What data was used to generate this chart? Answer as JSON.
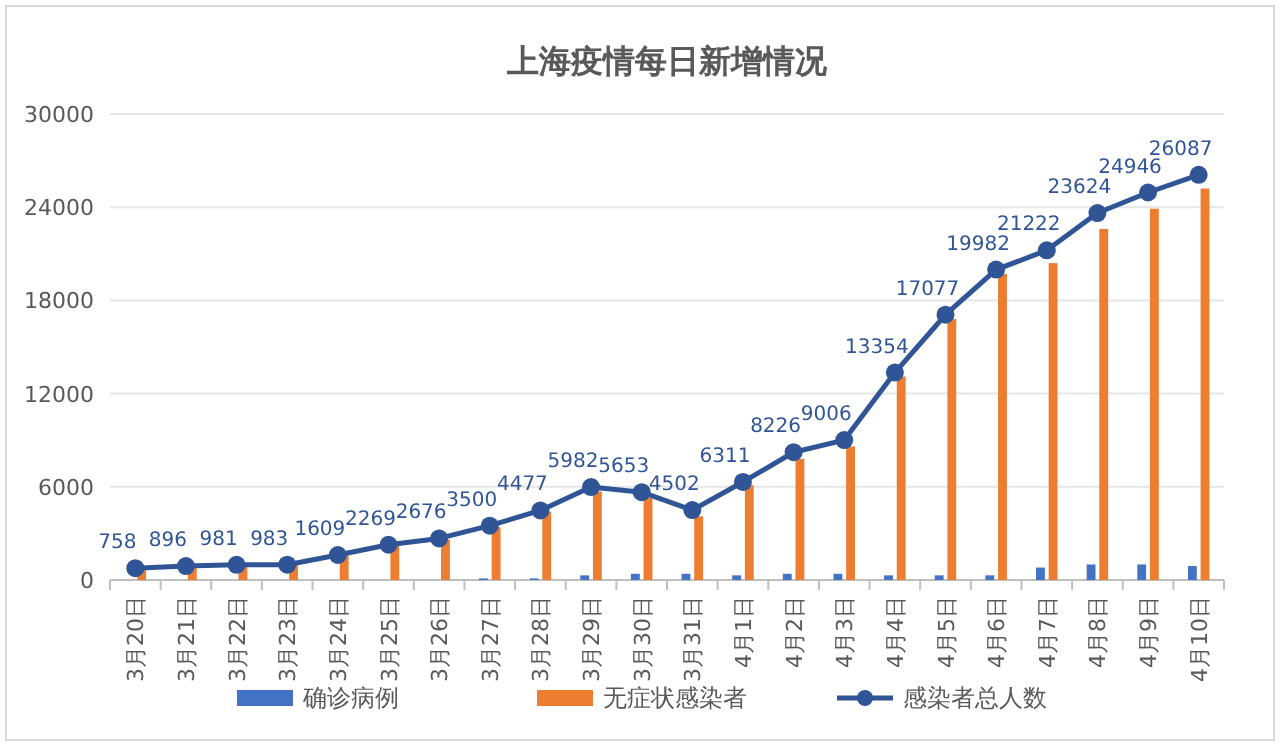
{
  "chart_data": {
    "type": "bar",
    "title": "上海疫情每日新增情况",
    "categories": [
      "3月20日",
      "3月21日",
      "3月22日",
      "3月23日",
      "3月24日",
      "3月25日",
      "3月26日",
      "3月27日",
      "3月28日",
      "3月29日",
      "3月30日",
      "3月31日",
      "4月1日",
      "4月2日",
      "4月3日",
      "4月4日",
      "4月5日",
      "4月6日",
      "4月7日",
      "4月8日",
      "4月9日",
      "4月10日"
    ],
    "series": [
      {
        "name": "确诊病例",
        "color": "#4472c4",
        "values": [
          0,
          0,
          0,
          0,
          0,
          0,
          0,
          100,
          100,
          300,
          400,
          400,
          300,
          400,
          400,
          300,
          300,
          300,
          800,
          1000,
          1000,
          900
        ]
      },
      {
        "name": "无症状感染者",
        "color": "#ed7d31",
        "values": [
          700,
          900,
          1000,
          1000,
          1600,
          2200,
          2600,
          3400,
          4400,
          5700,
          5300,
          4100,
          6100,
          7800,
          8600,
          13100,
          16800,
          19700,
          20400,
          22600,
          23900,
          25200
        ]
      },
      {
        "name": "感染者总人数",
        "type": "line",
        "color": "#2f5597",
        "marker": "circle",
        "values": [
          758,
          896,
          981,
          983,
          1609,
          2269,
          2676,
          3500,
          4477,
          5982,
          5653,
          4502,
          6311,
          8226,
          9006,
          13354,
          17077,
          19982,
          21222,
          23624,
          24946,
          26087
        ],
        "value_labels": [
          "758",
          "896",
          "981",
          "983",
          "1609",
          "2269",
          "2676",
          "3500",
          "4477",
          "5982",
          "5653",
          "4502",
          "6311",
          "8226",
          "9006",
          "13354",
          "17077",
          "19982",
          "21222",
          "23624",
          "24946",
          "26087"
        ]
      }
    ],
    "ylim": [
      0,
      30000
    ],
    "yticks": [
      0,
      6000,
      12000,
      18000,
      24000,
      30000
    ],
    "grid": "y",
    "legend": "bottom"
  }
}
